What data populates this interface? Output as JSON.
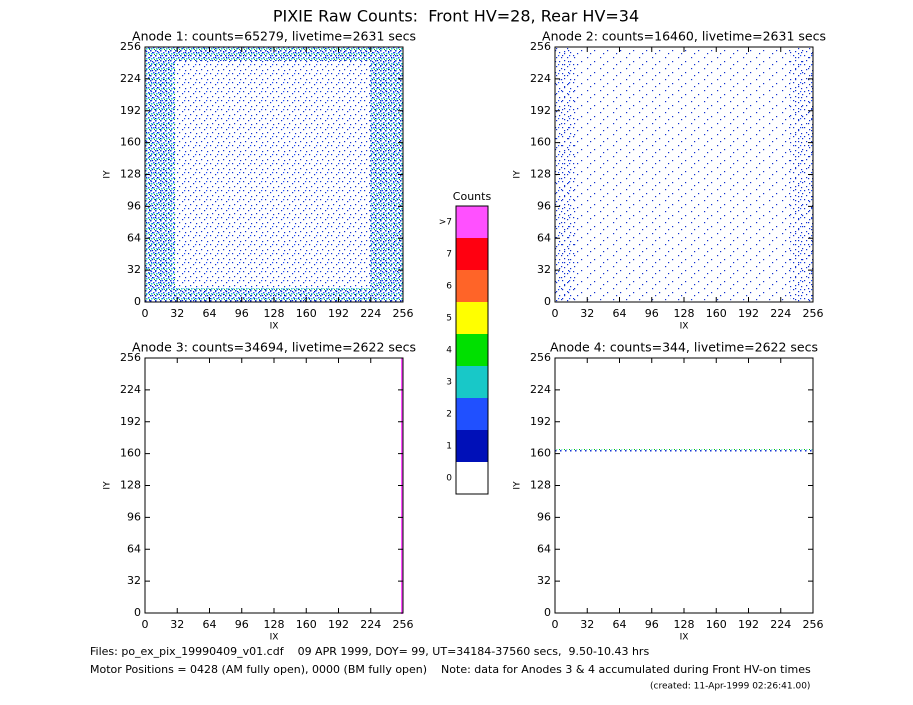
{
  "title": "PIXIE Raw Counts:  Front HV=28, Rear HV=34",
  "chart_data": [
    {
      "type": "heatmap",
      "title": "Anode 1: counts=65279, livetime=2631 secs",
      "xlabel": "IX",
      "ylabel": "IY",
      "xlim": [
        0,
        256
      ],
      "ylim": [
        0,
        256
      ],
      "xticks": [
        0,
        32,
        64,
        96,
        128,
        160,
        192,
        224,
        256
      ],
      "yticks": [
        0,
        32,
        64,
        96,
        128,
        160,
        192,
        224,
        256
      ]
    },
    {
      "type": "heatmap",
      "title": "Anode 2: counts=16460, livetime=2631 secs",
      "xlabel": "IX",
      "ylabel": "IY",
      "xlim": [
        0,
        256
      ],
      "ylim": [
        0,
        256
      ],
      "xticks": [
        0,
        32,
        64,
        96,
        128,
        160,
        192,
        224,
        256
      ],
      "yticks": [
        0,
        32,
        64,
        96,
        128,
        160,
        192,
        224,
        256
      ]
    },
    {
      "type": "heatmap",
      "title": "Anode 3: counts=34694, livetime=2622 secs",
      "xlabel": "IX",
      "ylabel": "IY",
      "xlim": [
        0,
        256
      ],
      "ylim": [
        0,
        256
      ],
      "xticks": [
        0,
        32,
        64,
        96,
        128,
        160,
        192,
        224,
        256
      ],
      "yticks": [
        0,
        32,
        64,
        96,
        128,
        160,
        192,
        224,
        256
      ]
    },
    {
      "type": "heatmap",
      "title": "Anode 4: counts=344, livetime=2622 secs",
      "xlabel": "IX",
      "ylabel": "IY",
      "xlim": [
        0,
        256
      ],
      "ylim": [
        0,
        256
      ],
      "xticks": [
        0,
        32,
        64,
        96,
        128,
        160,
        192,
        224,
        256
      ],
      "yticks": [
        0,
        32,
        64,
        96,
        128,
        160,
        192,
        224,
        256
      ]
    }
  ],
  "colorbar": {
    "title": "Counts",
    "labels": [
      "0",
      "1",
      "2",
      "3",
      "4",
      "5",
      "6",
      "7",
      ">7"
    ],
    "colors": [
      "#ffffff",
      "#0010b8",
      "#2050ff",
      "#18c8c8",
      "#00e000",
      "#ffff00",
      "#ff6428",
      "#ff0010",
      "#ff50ff"
    ]
  },
  "footer": [
    "Files: po_ex_pix_19990409_v01.cdf    09 APR 1999, DOY= 99, UT=34184-37560 secs,  9.50-10.43 hrs",
    "Motor Positions = 0428 (AM fully open), 0000 (BM fully open)    Note: data for Anodes 3 & 4 accumulated during Front HV-on times",
    "(created: 11-Apr-1999 02:26:41.00)"
  ]
}
